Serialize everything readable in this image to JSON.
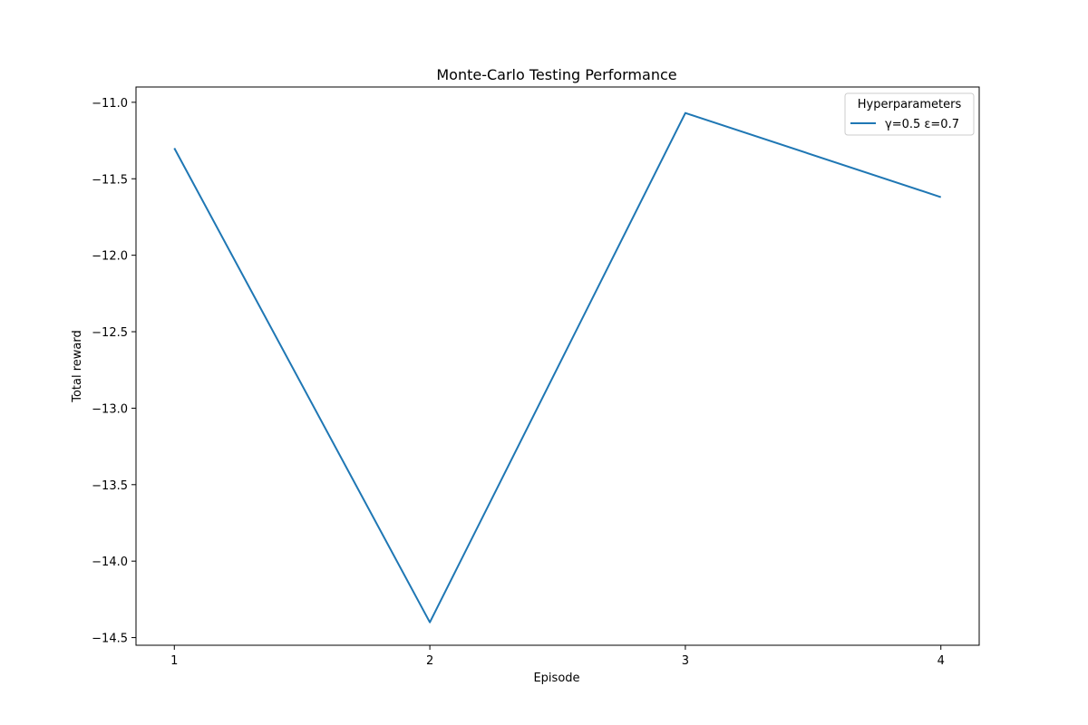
{
  "chart_data": {
    "type": "line",
    "title": "Monte-Carlo Testing Performance",
    "xlabel": "Episode",
    "ylabel": "Total reward",
    "x": [
      1,
      2,
      3,
      4
    ],
    "xticks": [
      "1",
      "2",
      "3",
      "4"
    ],
    "yticks": [
      -11.0,
      -11.5,
      -12.0,
      -12.5,
      -13.0,
      -13.5,
      -14.0,
      -14.5
    ],
    "ytick_labels": [
      "−11.0",
      "−11.5",
      "−12.0",
      "−12.5",
      "−13.0",
      "−13.5",
      "−14.0",
      "−14.5"
    ],
    "xlim": [
      0.85,
      4.15
    ],
    "ylim": [
      -14.55,
      -10.9
    ],
    "grid": false,
    "legend": {
      "title": "Hyperparameters",
      "placement": "top-right"
    },
    "series": [
      {
        "name": "γ=0.5 ε=0.7",
        "values": [
          -11.3,
          -14.4,
          -11.07,
          -11.62
        ],
        "color": "#1f77b4"
      }
    ]
  }
}
